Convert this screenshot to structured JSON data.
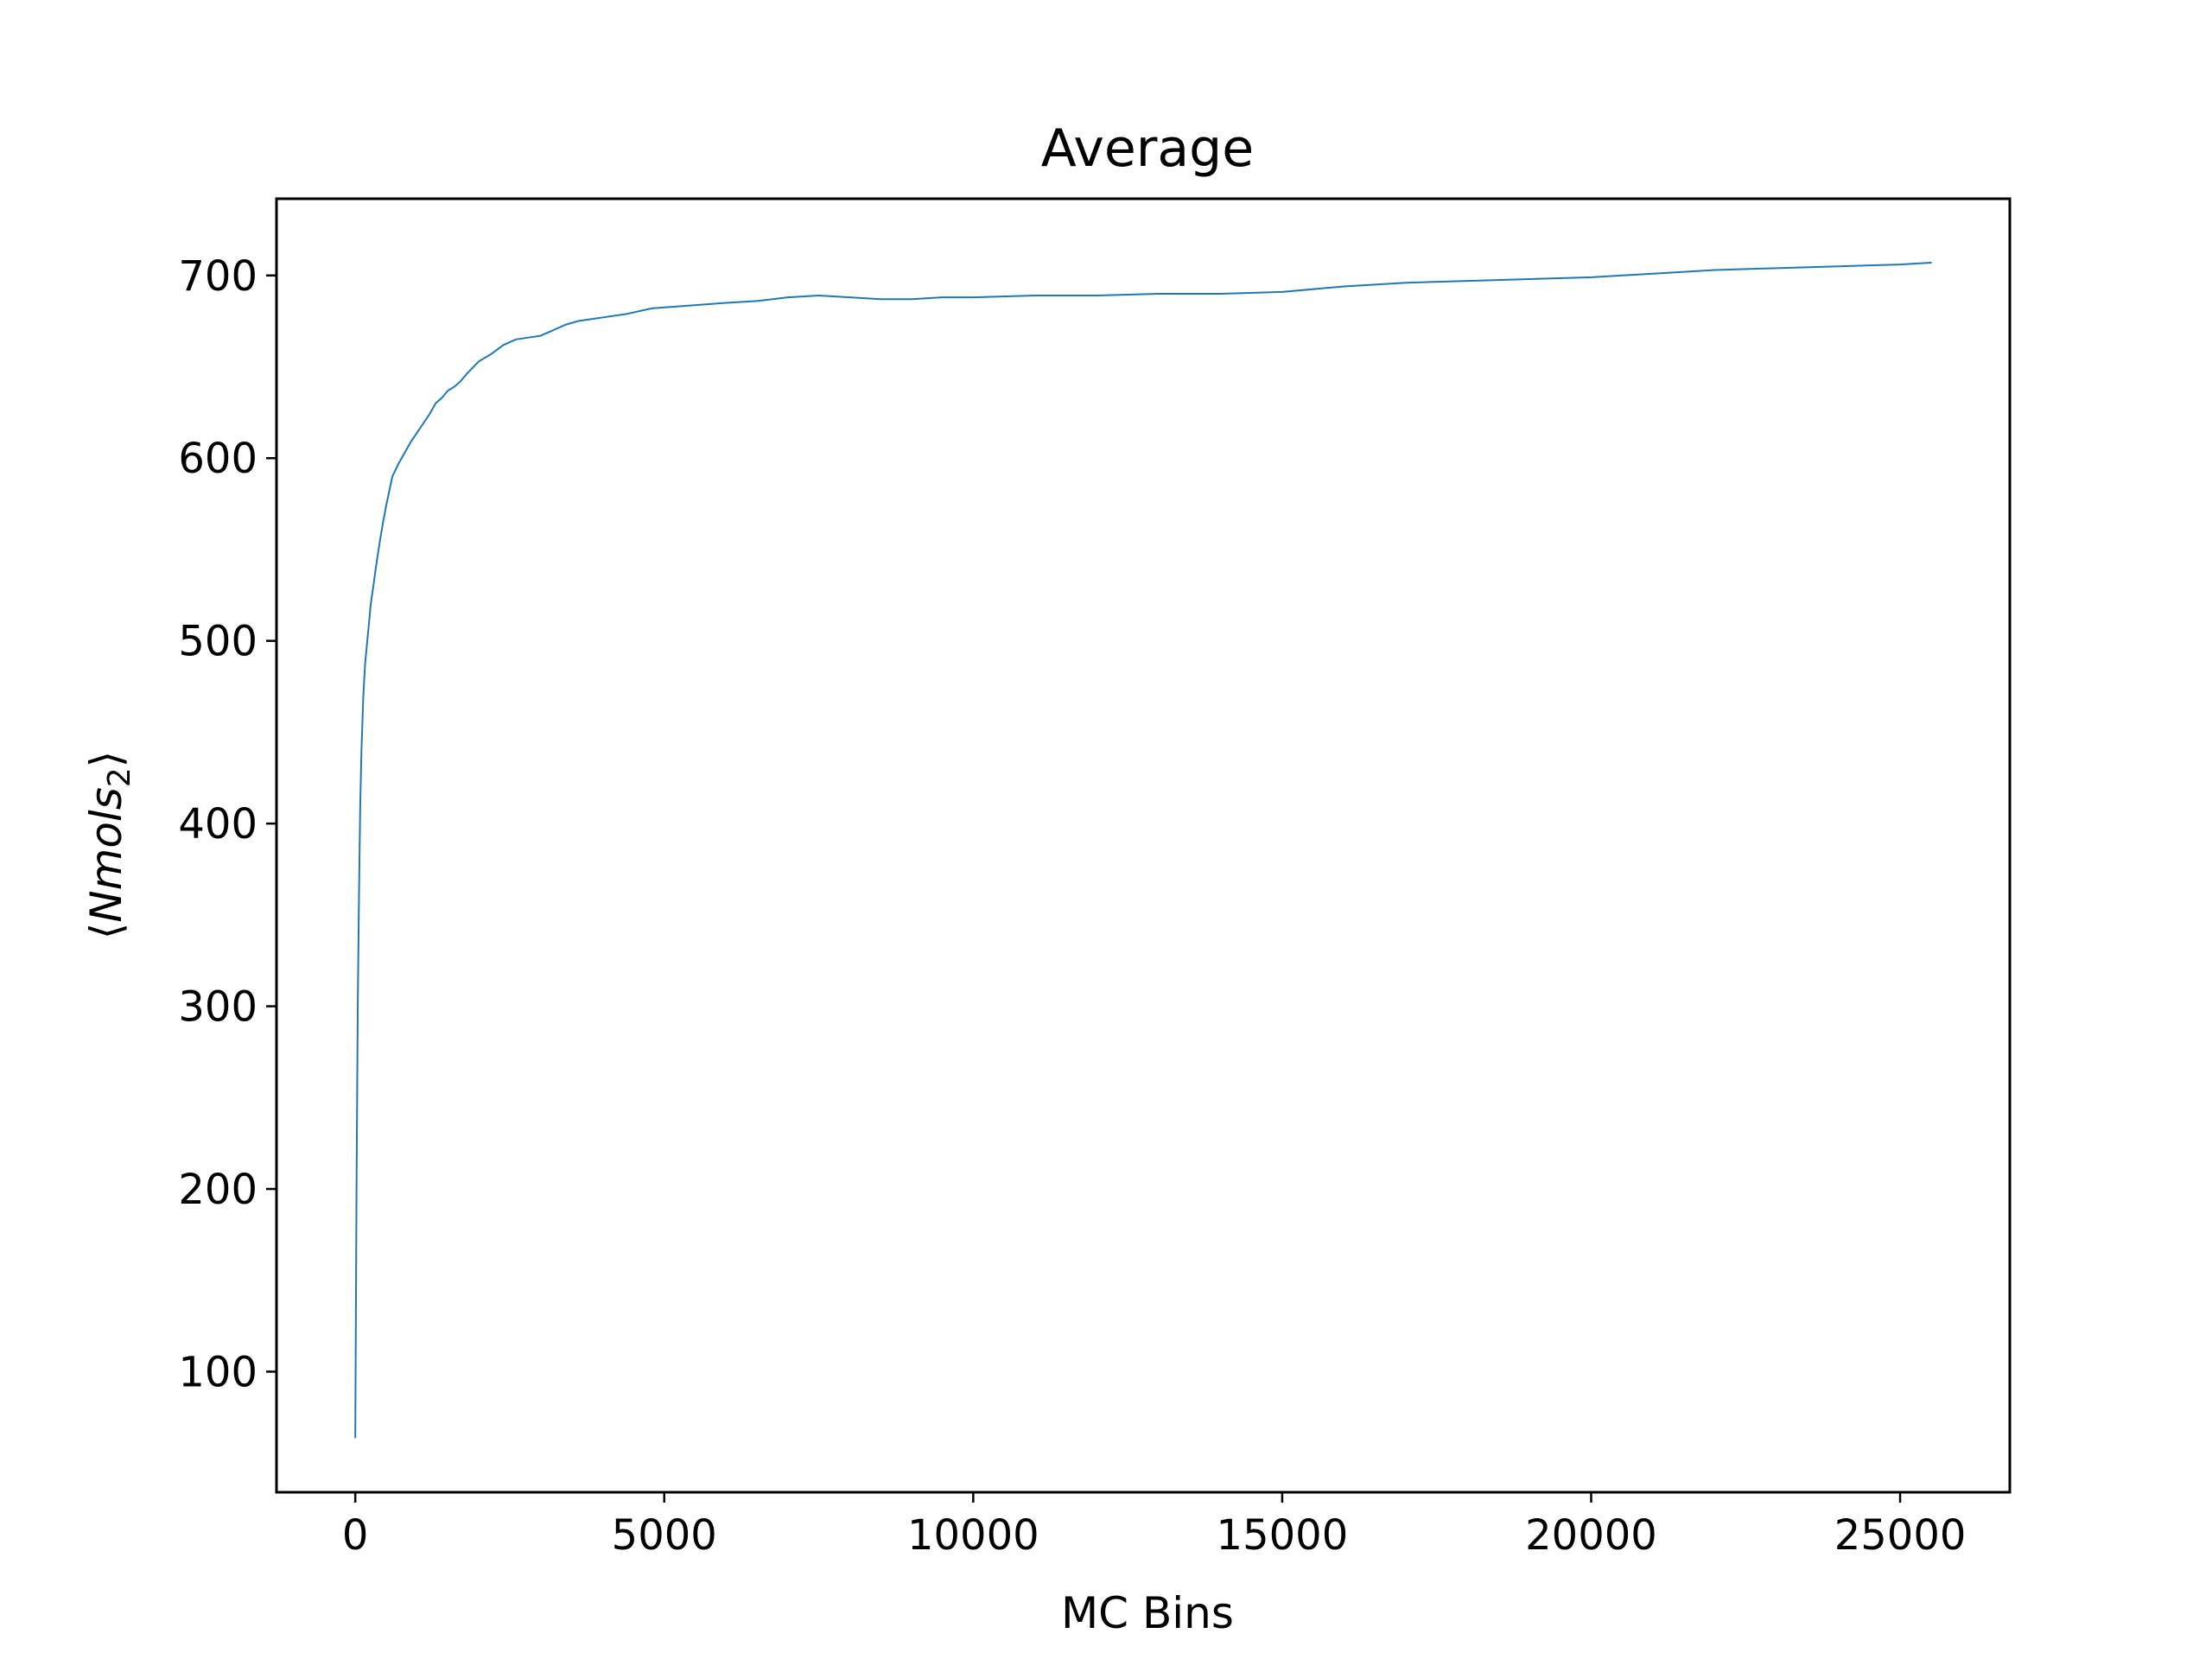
{
  "chart_data": {
    "type": "line",
    "title": "Average",
    "xlabel": "MC Bins",
    "ylabel": {
      "open": "⟨",
      "main": "Nmols",
      "subscript": "2",
      "close": "⟩"
    },
    "xlim": [
      -1275,
      26775
    ],
    "ylim": [
      34,
      742
    ],
    "xticks": [
      0,
      5000,
      10000,
      15000,
      20000,
      25000
    ],
    "xtick_labels": [
      "0",
      "5000",
      "10000",
      "15000",
      "20000",
      "25000"
    ],
    "yticks": [
      100,
      200,
      300,
      400,
      500,
      600,
      700
    ],
    "ytick_labels": [
      "100",
      "200",
      "300",
      "400",
      "500",
      "600",
      "700"
    ],
    "grid": false,
    "legend": "none",
    "colors": {
      "line": "#1f77b4",
      "axes": "#000000",
      "background": "#ffffff"
    },
    "series": [
      {
        "x": [
          0,
          20,
          40,
          60,
          80,
          100,
          130,
          160,
          200,
          250,
          300,
          350,
          400,
          450,
          500,
          600,
          700,
          800,
          900,
          1000,
          1200,
          1300,
          1400,
          1500,
          1600,
          1700,
          1800,
          2000,
          2200,
          2400,
          2600,
          2800,
          3000,
          3200,
          3400,
          3600,
          3800,
          4000,
          4400,
          4800,
          5200,
          5600,
          6000,
          6500,
          7000,
          7500,
          8000,
          8500,
          9000,
          9500,
          10000,
          11000,
          12000,
          13000,
          14000,
          15000,
          16000,
          17000,
          18000,
          19000,
          20000,
          21000,
          22000,
          23000,
          24000,
          25000,
          25500
        ],
        "y": [
          64,
          200,
          300,
          360,
          410,
          440,
          470,
          488,
          502,
          520,
          532,
          544,
          555,
          565,
          574,
          590,
          597,
          603,
          609,
          614,
          624,
          630,
          633,
          637,
          639,
          642,
          646,
          653,
          657,
          662,
          665,
          666,
          667,
          670,
          673,
          675,
          676,
          677,
          679,
          682,
          683,
          684,
          685,
          686,
          688,
          689,
          688,
          687,
          687,
          688,
          688,
          689,
          689,
          690,
          690,
          691,
          694,
          696,
          697,
          698,
          699,
          701,
          703,
          704,
          705,
          706,
          707
        ]
      }
    ]
  }
}
